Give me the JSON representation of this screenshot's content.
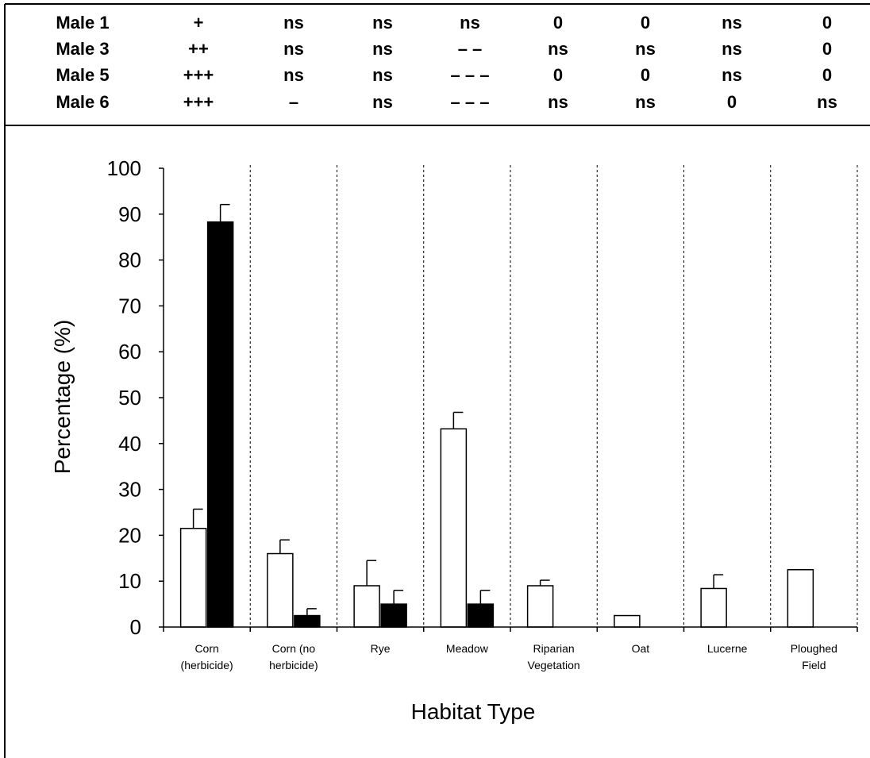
{
  "significance_table": {
    "rows": [
      {
        "label": "Male 1",
        "values": [
          "+",
          "ns",
          "ns",
          "ns",
          "0",
          "0",
          "ns",
          "0"
        ]
      },
      {
        "label": "Male 3",
        "values": [
          "++",
          "ns",
          "ns",
          "– –",
          "ns",
          "ns",
          "ns",
          "0"
        ]
      },
      {
        "label": "Male 5",
        "values": [
          "+++",
          "ns",
          "ns",
          "– – –",
          "0",
          "0",
          "ns",
          "0"
        ]
      },
      {
        "label": "Male 6",
        "values": [
          "+++",
          "–",
          "ns",
          "– – –",
          "ns",
          "ns",
          "0",
          "ns"
        ]
      }
    ]
  },
  "chart_data": {
    "type": "bar",
    "title": "",
    "xlabel": "Habitat Type",
    "ylabel": "Percentage (%)",
    "ylim": [
      0,
      100
    ],
    "yticks": [
      0,
      10,
      20,
      30,
      40,
      50,
      60,
      70,
      80,
      90,
      100
    ],
    "categories": [
      [
        "Corn",
        "(herbicide)"
      ],
      [
        "Corn (no",
        "herbicide)"
      ],
      [
        "Rye"
      ],
      [
        "Meadow"
      ],
      [
        "Riparian",
        "Vegetation"
      ],
      [
        "Oat"
      ],
      [
        "Lucerne"
      ],
      [
        "Ploughed",
        "Field"
      ]
    ],
    "series": [
      {
        "fill": "#ffffff",
        "values": [
          21.5,
          16,
          9,
          43.2,
          9,
          2.5,
          8.4,
          12.5
        ],
        "errors": [
          4.2,
          3,
          5.5,
          3.6,
          1.2,
          null,
          3,
          null
        ]
      },
      {
        "fill": "#000000",
        "values": [
          88.3,
          2.5,
          5,
          5,
          null,
          null,
          null,
          null
        ],
        "errors": [
          3.8,
          1.5,
          3,
          3,
          null,
          null,
          null,
          null
        ]
      }
    ],
    "grid": false,
    "category_separators": "dashed vertical lines"
  }
}
